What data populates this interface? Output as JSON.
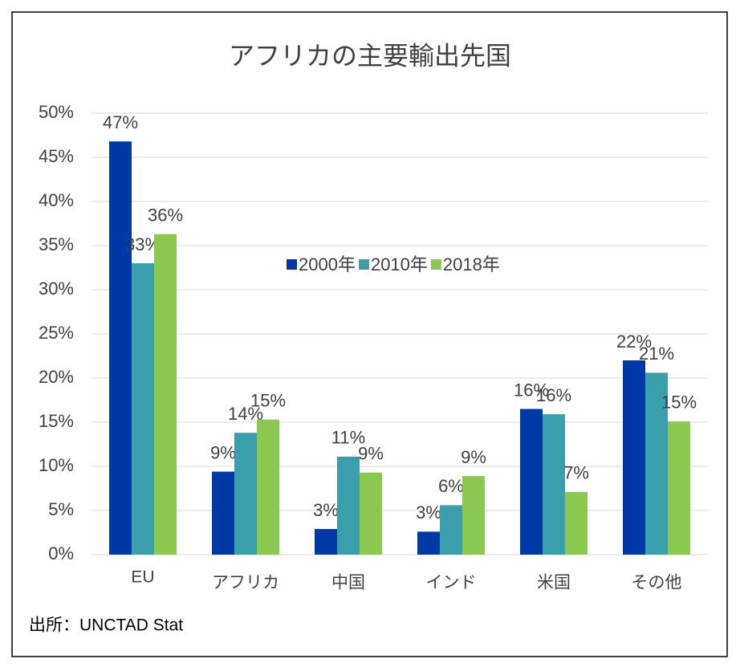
{
  "chart_data": {
    "type": "bar",
    "title": "アフリカの主要輸出先国",
    "source": "出所：UNCTAD Stat",
    "categories": [
      "EU",
      "アフリカ",
      "中国",
      "インド",
      "米国",
      "その他"
    ],
    "series": [
      {
        "name": "2000年",
        "color": "#0039a6",
        "values": [
          46.8,
          9.4,
          2.9,
          2.6,
          16.5,
          22.0
        ],
        "value_labels": [
          "47%",
          "9%",
          "3%",
          "3%",
          "16%",
          "22%"
        ]
      },
      {
        "name": "2010年",
        "color": "#3a9fab",
        "values": [
          33.0,
          13.8,
          11.1,
          5.6,
          15.9,
          20.6
        ],
        "value_labels": [
          "33%",
          "14%",
          "11%",
          "6%",
          "16%",
          "21%"
        ]
      },
      {
        "name": "2018年",
        "color": "#8bc84f",
        "values": [
          36.3,
          15.3,
          9.3,
          8.9,
          7.1,
          15.1
        ],
        "value_labels": [
          "36%",
          "15%",
          "9%",
          "9%",
          "7%",
          "15%"
        ]
      }
    ],
    "ylim": [
      0,
      50
    ],
    "yticks": [
      {
        "value": 0,
        "label": "0%"
      },
      {
        "value": 5,
        "label": "5%"
      },
      {
        "value": 10,
        "label": "10%"
      },
      {
        "value": 15,
        "label": "15%"
      },
      {
        "value": 20,
        "label": "20%"
      },
      {
        "value": 25,
        "label": "25%"
      },
      {
        "value": 30,
        "label": "30%"
      },
      {
        "value": 35,
        "label": "35%"
      },
      {
        "value": 40,
        "label": "40%"
      },
      {
        "value": 45,
        "label": "45%"
      },
      {
        "value": 50,
        "label": "50%"
      }
    ],
    "grid": true
  }
}
